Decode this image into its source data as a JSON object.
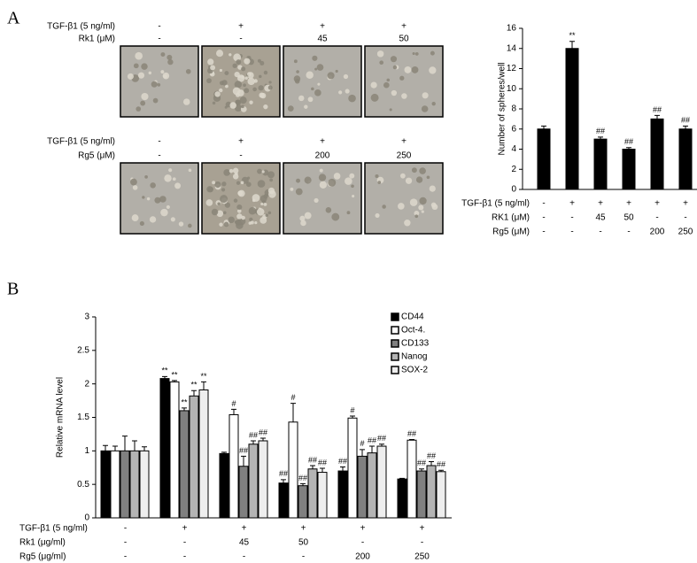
{
  "panel_labels": [
    "A",
    "B"
  ],
  "image_panels": [
    {
      "treatments": [
        {
          "label": "TGF-β1 (5 ng/ml)",
          "cells": [
            "-",
            "+",
            "+",
            "+"
          ]
        },
        {
          "label": "Rk1 (μM)",
          "cells": [
            "-",
            "-",
            "45",
            "50"
          ]
        }
      ]
    },
    {
      "treatments": [
        {
          "label": "TGF-β1 (5 ng/ml)",
          "cells": [
            "-",
            "+",
            "+",
            "+"
          ]
        },
        {
          "label": "Rg5 (μM)",
          "cells": [
            "-",
            "-",
            "200",
            "250"
          ]
        }
      ]
    }
  ],
  "chart_data": [
    {
      "type": "bar",
      "y_label": "Number of spheres/well",
      "color": "#000000",
      "values": [
        6,
        14,
        5,
        4,
        7,
        6
      ],
      "errors": [
        0.3,
        0.7,
        0.2,
        0.15,
        0.35,
        0.3
      ],
      "annotations": [
        null,
        "**",
        "##",
        "##",
        "##",
        "##"
      ],
      "ylim": [
        0,
        16
      ],
      "yticks": [
        0,
        2,
        4,
        6,
        8,
        10,
        12,
        14,
        16
      ],
      "treatments": [
        {
          "label": "TGF-β1 (5 ng/ml)",
          "cells": [
            "-",
            "+",
            "+",
            "+",
            "+",
            "+"
          ]
        },
        {
          "label": "RK1 (μM)",
          "cells": [
            "-",
            "-",
            "45",
            "50",
            "-",
            "-"
          ]
        },
        {
          "label": "Rg5 (μM)",
          "cells": [
            "-",
            "-",
            "-",
            "-",
            "200",
            "250"
          ]
        }
      ]
    },
    {
      "type": "grouped-bar",
      "y_label": "Relative mRNA level",
      "legend": "top-right",
      "series": [
        {
          "name": "CD44",
          "color": "#000000",
          "values": [
            1.0,
            2.08,
            0.96,
            0.52,
            0.7,
            0.58
          ],
          "errors": [
            0.08,
            0.03,
            0.02,
            0.05,
            0.06,
            0.01
          ],
          "annotations": [
            null,
            "**",
            null,
            "##",
            "##",
            null
          ]
        },
        {
          "name": "Oct-4.",
          "color": "#ffffff",
          "values": [
            1.0,
            2.03,
            1.54,
            1.43,
            1.49,
            1.16
          ],
          "errors": [
            0.07,
            0.02,
            0.08,
            0.28,
            0.03,
            0.01
          ],
          "annotations": [
            null,
            "**",
            "#",
            "#",
            "#",
            "##"
          ]
        },
        {
          "name": "CD133",
          "color": "#808080",
          "values": [
            1.0,
            1.6,
            0.77,
            0.48,
            0.92,
            0.7
          ],
          "errors": [
            0.22,
            0.04,
            0.15,
            0.03,
            0.1,
            0.03
          ],
          "annotations": [
            null,
            "**",
            "##",
            "##",
            "#",
            "##"
          ]
        },
        {
          "name": "Nanog",
          "color": "#b4b4b4",
          "values": [
            1.0,
            1.82,
            1.1,
            0.73,
            0.97,
            0.78
          ],
          "errors": [
            0.15,
            0.08,
            0.05,
            0.05,
            0.1,
            0.06
          ],
          "annotations": [
            null,
            "**",
            "##",
            "##",
            "##",
            "##"
          ]
        },
        {
          "name": "SOX-2",
          "color": "#eeeeee",
          "values": [
            1.0,
            1.91,
            1.15,
            0.68,
            1.07,
            0.69
          ],
          "errors": [
            0.06,
            0.12,
            0.04,
            0.06,
            0.03,
            0.02
          ],
          "annotations": [
            null,
            "**",
            "##",
            "##",
            "##",
            "##"
          ]
        }
      ],
      "ylim": [
        0,
        3
      ],
      "yticks": [
        0,
        0.5,
        1,
        1.5,
        2,
        2.5,
        3
      ],
      "treatments": [
        {
          "label": "TGF-β1 (5 ng/ml)",
          "cells": [
            "-",
            "+",
            "+",
            "+",
            "+",
            "+"
          ]
        },
        {
          "label": "Rk1 (μg/ml)",
          "cells": [
            "-",
            "-",
            "45",
            "50",
            "-",
            "-"
          ]
        },
        {
          "label": "Rg5 (μg/ml)",
          "cells": [
            "-",
            "-",
            "-",
            "-",
            "200",
            "250"
          ]
        }
      ]
    }
  ]
}
